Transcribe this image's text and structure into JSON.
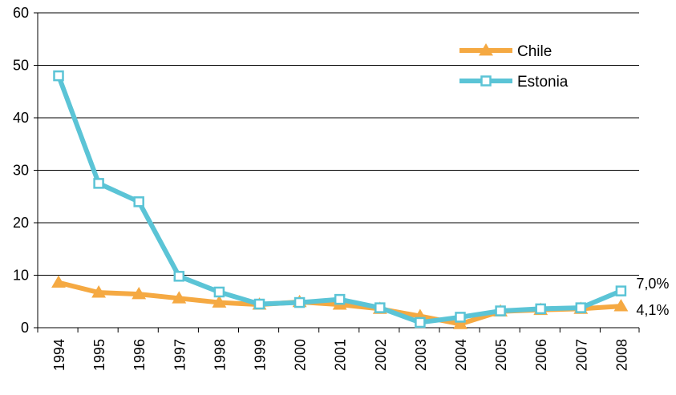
{
  "chart_data": {
    "type": "line",
    "x": [
      "1994",
      "1995",
      "1996",
      "1997",
      "1998",
      "1999",
      "2000",
      "2001",
      "2002",
      "2003",
      "2004",
      "2005",
      "2006",
      "2007",
      "2008"
    ],
    "ylim": [
      0,
      60
    ],
    "yticks": [
      0,
      10,
      20,
      30,
      40,
      50,
      60
    ],
    "grid": true,
    "legend_position": "top-right",
    "series": [
      {
        "name": "Chile",
        "color": "#f5a942",
        "marker": "triangle",
        "values": [
          8.6,
          6.7,
          6.4,
          5.6,
          4.8,
          4.4,
          4.9,
          4.4,
          3.6,
          2.2,
          0.7,
          3.1,
          3.4,
          3.6,
          4.1
        ]
      },
      {
        "name": "Estonia",
        "color": "#5bc4d6",
        "marker": "square",
        "values": [
          48.0,
          27.5,
          24.0,
          9.8,
          6.8,
          4.5,
          4.8,
          5.4,
          3.8,
          1.0,
          2.0,
          3.2,
          3.6,
          3.8,
          7.0
        ]
      }
    ],
    "annotations": [
      {
        "text": "7,0%",
        "series": "Estonia",
        "x": "2008",
        "y": 7.0
      },
      {
        "text": "4,1%",
        "series": "Chile",
        "x": "2008",
        "y": 4.1
      }
    ]
  }
}
